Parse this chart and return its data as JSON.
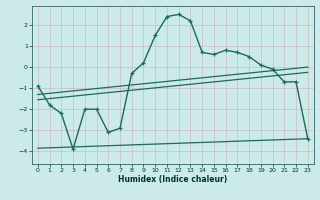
{
  "title": "",
  "xlabel": "Humidex (Indice chaleur)",
  "ylabel": "",
  "background_color": "#cceaea",
  "grid_color": "#bbcccc",
  "line_color": "#1a6b5a",
  "xlim": [
    -0.5,
    23.5
  ],
  "ylim": [
    -4.6,
    2.9
  ],
  "yticks": [
    -4,
    -3,
    -2,
    -1,
    0,
    1,
    2
  ],
  "xticks": [
    0,
    1,
    2,
    3,
    4,
    5,
    6,
    7,
    8,
    9,
    10,
    11,
    12,
    13,
    14,
    15,
    16,
    17,
    18,
    19,
    20,
    21,
    22,
    23
  ],
  "line1_x": [
    0,
    1,
    2,
    3,
    4,
    5,
    6,
    7,
    8,
    9,
    10,
    11,
    12,
    13,
    14,
    15,
    16,
    17,
    18,
    19,
    20,
    21,
    22,
    23
  ],
  "line1_y": [
    -0.9,
    -1.8,
    -2.2,
    -3.9,
    -2.0,
    -2.0,
    -3.1,
    -2.9,
    -0.3,
    0.2,
    1.5,
    2.4,
    2.5,
    2.2,
    0.7,
    0.6,
    0.8,
    0.7,
    0.5,
    0.1,
    -0.1,
    -0.7,
    -0.7,
    -3.4
  ],
  "line2_x": [
    0,
    23
  ],
  "line2_y": [
    -1.3,
    0.0
  ],
  "line3_x": [
    0,
    23
  ],
  "line3_y": [
    -1.55,
    -0.25
  ],
  "line4_x": [
    0,
    23
  ],
  "line4_y": [
    -3.85,
    -3.4
  ],
  "figsize": [
    3.2,
    2.0
  ],
  "dpi": 100
}
